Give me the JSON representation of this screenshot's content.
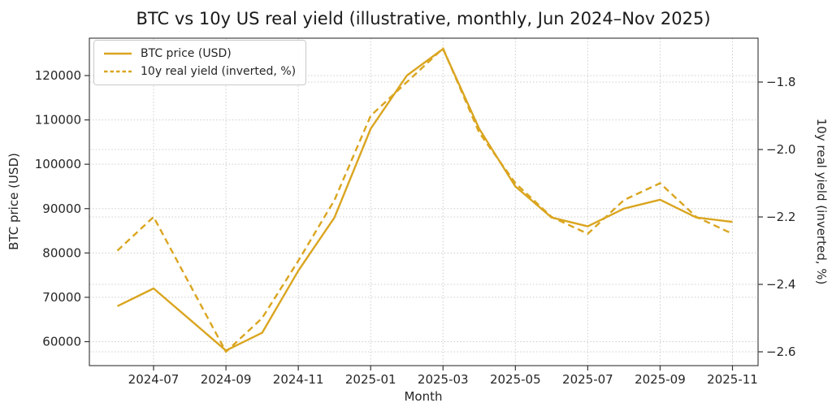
{
  "title": "BTC vs 10y US real yield (illustrative, monthly, Jun 2024–Nov 2025)",
  "colors": {
    "line": "#DAA520",
    "text": "#262626",
    "grid": "#cccccc",
    "background": "#ffffff"
  },
  "chart_data": {
    "type": "line",
    "title": "BTC vs 10y US real yield (illustrative, monthly, Jun 2024–Nov 2025)",
    "xlabel": "Month",
    "grid": true,
    "x": [
      "2024-06",
      "2024-07",
      "2024-08",
      "2024-09",
      "2024-10",
      "2024-11",
      "2024-12",
      "2025-01",
      "2025-02",
      "2025-03",
      "2025-04",
      "2025-05",
      "2025-06",
      "2025-07",
      "2025-08",
      "2025-09",
      "2025-10",
      "2025-11"
    ],
    "x_tick_labels": [
      "2024-07",
      "2024-09",
      "2024-11",
      "2025-01",
      "2025-03",
      "2025-05",
      "2025-07",
      "2025-09",
      "2025-11"
    ],
    "left_axis": {
      "label": "BTC price (USD)",
      "ticks": [
        60000,
        70000,
        80000,
        90000,
        100000,
        110000,
        120000
      ],
      "range": [
        54600,
        128400
      ]
    },
    "right_axis": {
      "label": "10y real yield (inverted, %)",
      "ticks": [
        -1.8,
        -2.0,
        -2.2,
        -2.4,
        -2.6
      ],
      "range": [
        -2.64,
        -1.67
      ]
    },
    "series": [
      {
        "name": "BTC price (USD)",
        "axis": "left",
        "style": "solid",
        "color": "#DAA520",
        "values": [
          68000,
          72000,
          65000,
          58000,
          62000,
          76000,
          88000,
          108000,
          120000,
          126000,
          108000,
          95000,
          88000,
          86000,
          90000,
          92000,
          88000,
          87000
        ]
      },
      {
        "name": "10y real yield (inverted, %)",
        "axis": "right",
        "style": "dashed",
        "color": "#DAA520",
        "values": [
          -2.3,
          -2.2,
          -2.4,
          -2.6,
          -2.5,
          -2.33,
          -2.15,
          -1.9,
          -1.8,
          -1.7,
          -1.95,
          -2.1,
          -2.2,
          -2.25,
          -2.15,
          -2.1,
          -2.2,
          -2.25
        ]
      }
    ],
    "legend": {
      "position": "upper left",
      "entries": [
        "BTC price (USD)",
        "10y real yield (inverted, %)"
      ]
    }
  }
}
